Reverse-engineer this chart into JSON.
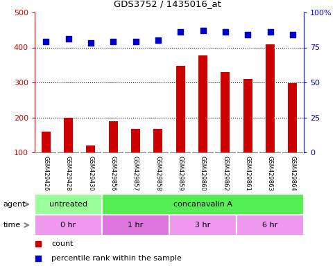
{
  "title": "GDS3752 / 1435016_at",
  "samples": [
    "GSM429426",
    "GSM429428",
    "GSM429430",
    "GSM429856",
    "GSM429857",
    "GSM429858",
    "GSM429859",
    "GSM429860",
    "GSM429862",
    "GSM429861",
    "GSM429863",
    "GSM429864"
  ],
  "counts": [
    160,
    200,
    120,
    190,
    168,
    168,
    348,
    378,
    330,
    310,
    408,
    298
  ],
  "percentile_ranks": [
    79,
    81,
    78,
    79,
    79,
    80,
    86,
    87,
    86,
    84,
    86,
    84
  ],
  "bar_color": "#cc0000",
  "dot_color": "#0000cc",
  "ylim_left": [
    100,
    500
  ],
  "ylim_right": [
    0,
    100
  ],
  "yticks_left": [
    100,
    200,
    300,
    400,
    500
  ],
  "yticks_right": [
    0,
    25,
    50,
    75,
    100
  ],
  "ytick_labels_right": [
    "0",
    "25",
    "50",
    "75",
    "100%"
  ],
  "background_color": "#ffffff",
  "plot_bg_color": "#ffffff",
  "agent_row": [
    {
      "label": "untreated",
      "start": 0,
      "end": 3,
      "color": "#99ff99"
    },
    {
      "label": "concanavalin A",
      "start": 3,
      "end": 12,
      "color": "#55ee55"
    }
  ],
  "time_row": [
    {
      "label": "0 hr",
      "start": 0,
      "end": 3,
      "color": "#ee99ee"
    },
    {
      "label": "1 hr",
      "start": 3,
      "end": 6,
      "color": "#dd77dd"
    },
    {
      "label": "3 hr",
      "start": 6,
      "end": 9,
      "color": "#ee99ee"
    },
    {
      "label": "6 hr",
      "start": 9,
      "end": 12,
      "color": "#ee99ee"
    }
  ],
  "legend_count_color": "#cc0000",
  "legend_dot_color": "#0000cc",
  "tick_gray_bg": "#c8c8c8",
  "agent_label": "agent",
  "time_label": "time",
  "bar_bottom": 100,
  "bar_width": 0.4,
  "dot_size": 30
}
